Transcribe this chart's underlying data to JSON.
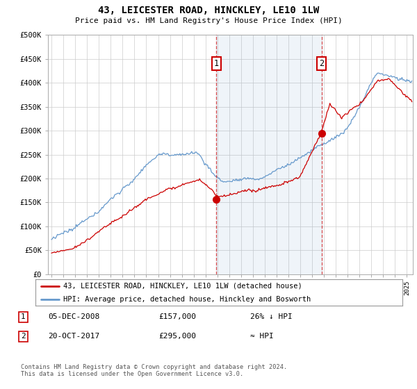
{
  "title": "43, LEICESTER ROAD, HINCKLEY, LE10 1LW",
  "subtitle": "Price paid vs. HM Land Registry's House Price Index (HPI)",
  "ylim": [
    0,
    500000
  ],
  "yticks": [
    0,
    50000,
    100000,
    150000,
    200000,
    250000,
    300000,
    350000,
    400000,
    450000,
    500000
  ],
  "ytick_labels": [
    "£0",
    "£50K",
    "£100K",
    "£150K",
    "£200K",
    "£250K",
    "£300K",
    "£350K",
    "£400K",
    "£450K",
    "£500K"
  ],
  "hpi_color": "#6699cc",
  "price_color": "#cc0000",
  "marker1_date": 2008.92,
  "marker1_price": 157000,
  "marker1_label": "1",
  "marker2_date": 2017.8,
  "marker2_price": 295000,
  "marker2_label": "2",
  "legend_line1": "43, LEICESTER ROAD, HINCKLEY, LE10 1LW (detached house)",
  "legend_line2": "HPI: Average price, detached house, Hinckley and Bosworth",
  "table_row1_num": "1",
  "table_row1_date": "05-DEC-2008",
  "table_row1_price": "£157,000",
  "table_row1_hpi": "26% ↓ HPI",
  "table_row2_num": "2",
  "table_row2_date": "20-OCT-2017",
  "table_row2_price": "£295,000",
  "table_row2_hpi": "≈ HPI",
  "footer": "Contains HM Land Registry data © Crown copyright and database right 2024.\nThis data is licensed under the Open Government Licence v3.0.",
  "background_color": "#ffffff",
  "plot_bg": "#ffffff",
  "grid_color": "#cccccc"
}
